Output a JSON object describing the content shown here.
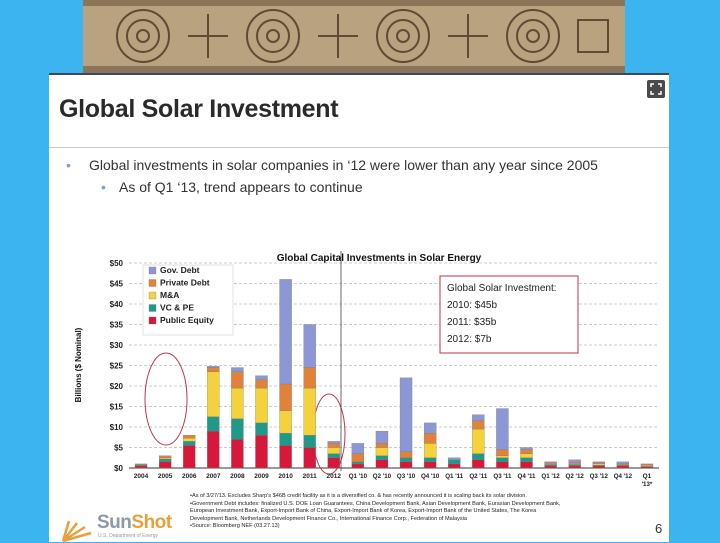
{
  "slide": {
    "title": "Global Solar Investment",
    "bullets": [
      "Global investments in solar companies in ‘12 were lower than any year since 2005",
      "As of Q1 ‘13, trend appears to continue"
    ],
    "page_number": "6"
  },
  "callout": {
    "title": "Global Solar Investment:",
    "lines": [
      "2010: $45b",
      "2011: $35b",
      "2012: $7b"
    ]
  },
  "footnotes": [
    "•As of 3/27/13. Excludes Sharp's $46B credit facility as it is a diversified co. & has recently announced it is scaling back its solar division.",
    "•Government Debt includes: finalized U.S. DOE Loan Guarantees, China Development Bank, Asian Development Bank, Eurasian Development Bank,",
    "European Investment Bank, Export-Import Bank of China, Export-Import Bank of Korea, Export-Import Bank of the United States, The Korea",
    "Development Bank, Netherlands Development Finance Co., International Finance Corp., Federation of Malaysia",
    "•Source: Bloomberg NEF (03.27.13)"
  ],
  "logo": {
    "name_a": "Sun",
    "name_b": "Shot",
    "sub": "U.S. Department of Energy"
  },
  "colors": {
    "gov_debt": "#8c97d6",
    "private_debt": "#e0823a",
    "ma": "#f4d23c",
    "vc_pe": "#1f9a8a",
    "public_equity": "#d6193a",
    "callout_border": "#c0364a",
    "circle": "#c0364a"
  },
  "chart_data": {
    "type": "bar",
    "stacked": true,
    "title": "Global Capital Investments in Solar Energy",
    "ylabel": "Billions ($ Nominal)",
    "ylim": [
      0,
      50
    ],
    "yticks": [
      "$0",
      "$5",
      "$10",
      "$15",
      "$20",
      "$25",
      "$30",
      "$35",
      "$40",
      "$45",
      "$50"
    ],
    "grid": true,
    "legend": "top-left",
    "categories": [
      "2004",
      "2005",
      "2006",
      "2007",
      "2008",
      "2009",
      "2010",
      "2011",
      "2012",
      "Q1 '10",
      "Q2 '10",
      "Q3 '10",
      "Q4 '10",
      "Q1 '11",
      "Q2 '11",
      "Q3 '11",
      "Q4 '11",
      "Q1 '12",
      "Q2 '12",
      "Q3 '12",
      "Q4 '12",
      "Q1 '13*"
    ],
    "category_labels_line1": [
      "2004",
      "2005",
      "2006",
      "2007",
      "2008",
      "2009",
      "2010",
      "2011",
      "2012",
      "Q1 '10",
      "Q2 '10",
      "Q3 '10",
      "Q4 '10",
      "Q1 '11",
      "Q2 '11",
      "Q3 '11",
      "Q4 '11",
      "Q1 '12",
      "Q2 '12",
      "Q3 '12",
      "Q4 '12",
      "Q1"
    ],
    "category_labels_line2": [
      "",
      "",
      "",
      "",
      "",
      "",
      "",
      "",
      "",
      "",
      "",
      "",
      "",
      "",
      "",
      "",
      "",
      "",
      "",
      "",
      "",
      "'13*"
    ],
    "series": [
      {
        "name": "Public Equity",
        "values": [
          0.5,
          1.5,
          5.5,
          9,
          7,
          8,
          5.5,
          5,
          2.5,
          1,
          2,
          1.5,
          1.5,
          1,
          2,
          1.5,
          1.5,
          0.5,
          0.5,
          0.5,
          0.5,
          0.3
        ]
      },
      {
        "name": "VC & PE",
        "values": [
          0.3,
          0.7,
          1,
          3.5,
          5,
          3,
          3,
          3,
          1,
          0.5,
          1,
          1,
          1,
          1,
          1.5,
          1,
          1,
          0.3,
          0.3,
          0.2,
          0.2,
          0.1
        ]
      },
      {
        "name": "M&A",
        "values": [
          0,
          0.3,
          0.8,
          11,
          7.5,
          8.5,
          5.5,
          11.5,
          1.5,
          0,
          2,
          0,
          3.5,
          0,
          6,
          0.5,
          1,
          0,
          0,
          0.3,
          0,
          0.3
        ]
      },
      {
        "name": "Private Debt",
        "values": [
          0.2,
          0.5,
          0.7,
          1,
          4,
          2,
          6.5,
          5,
          1,
          2,
          1,
          1.5,
          2.5,
          0,
          2,
          1.5,
          1,
          0.5,
          0.5,
          0.3,
          0.3,
          0.2
        ]
      },
      {
        "name": "Gov. Debt",
        "values": [
          0,
          0,
          0,
          0.3,
          1,
          1,
          25.5,
          10.5,
          0.5,
          2.5,
          3,
          18,
          2.5,
          0.5,
          1.5,
          10,
          0.5,
          0.2,
          0.7,
          0.2,
          0.5,
          0.1
        ]
      }
    ],
    "annotations": [
      "Global Solar Investment: 2010: $45b, 2011: $35b, 2012: $7b"
    ]
  }
}
